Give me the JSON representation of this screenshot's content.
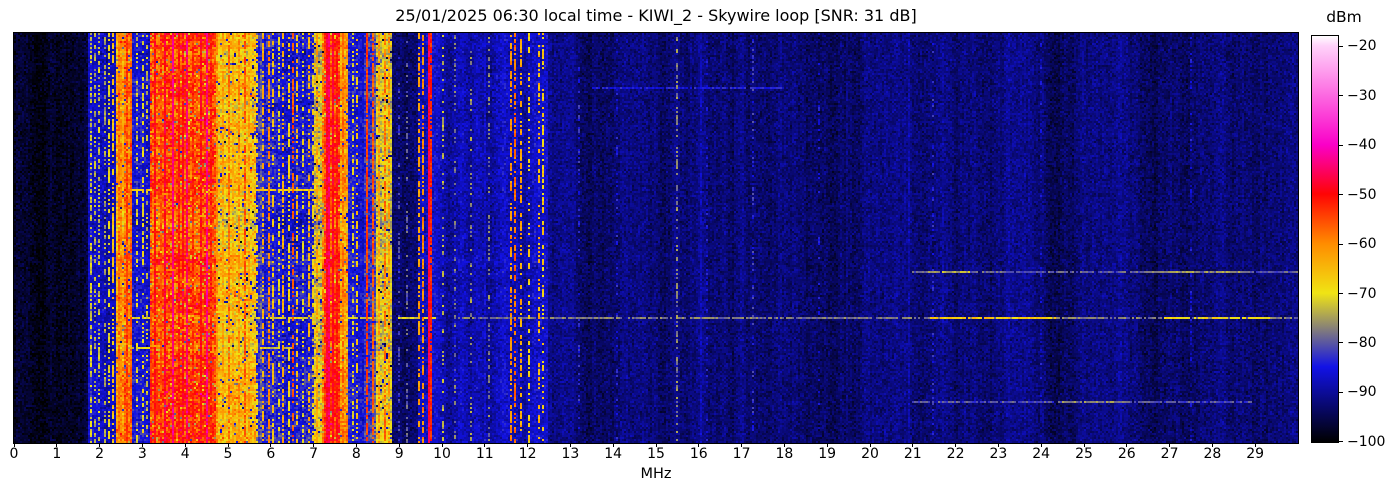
{
  "chart_data": {
    "type": "heatmap",
    "title": "25/01/2025 06:30 local time - KIWI_2 - Skywire loop [SNR: 31 dB]",
    "timestamp_label": "25/01/2025 06:30 local time",
    "station": "KIWI_2",
    "antenna": "Skywire loop",
    "snr_label": "SNR: 31 dB",
    "xlabel": "MHz",
    "x_range": [
      0,
      30
    ],
    "x_ticks": [
      0,
      1,
      2,
      3,
      4,
      5,
      6,
      7,
      8,
      9,
      10,
      11,
      12,
      13,
      14,
      15,
      16,
      17,
      18,
      19,
      20,
      21,
      22,
      23,
      24,
      25,
      26,
      27,
      28,
      29
    ],
    "grid": false,
    "colorbar": {
      "label": "dBm",
      "ticks": [
        -20,
        -30,
        -40,
        -50,
        -60,
        -70,
        -80,
        -90,
        -100
      ],
      "top_value": -18,
      "bottom_value": -100.2,
      "position": "right"
    },
    "colormap_stops": [
      [
        -100.2,
        "#000000"
      ],
      [
        -85,
        "#1212e6"
      ],
      [
        -70,
        "#f0e414"
      ],
      [
        -60,
        "#ff8c00"
      ],
      [
        -50,
        "#ff0404"
      ],
      [
        -40,
        "#fa00c8"
      ],
      [
        -20,
        "#ffd2fa"
      ],
      [
        -18,
        "#ffffff"
      ]
    ],
    "noise_floor_dbm": -92,
    "seed": 7,
    "bands": [
      [
        0,
        1.72,
        -97,
        3.5,
        0
      ],
      [
        1.72,
        2.4,
        -89,
        4.5,
        0.3
      ],
      [
        2.4,
        2.58,
        -63,
        7,
        1
      ],
      [
        2.58,
        2.78,
        -58,
        7,
        1
      ],
      [
        2.78,
        3.2,
        -86,
        5,
        0.5
      ],
      [
        3.2,
        4.7,
        -55,
        8.5,
        1
      ],
      [
        4.7,
        5.65,
        -67,
        8,
        1
      ],
      [
        5.65,
        7.02,
        -85,
        6,
        0.5
      ],
      [
        7.02,
        7.26,
        -72,
        8,
        1
      ],
      [
        7.26,
        7.62,
        -53,
        7,
        1
      ],
      [
        7.62,
        7.8,
        -63,
        7,
        1
      ],
      [
        7.8,
        8.2,
        -85,
        5,
        0.4
      ],
      [
        8.2,
        8.48,
        -82,
        6,
        0.5
      ],
      [
        8.48,
        8.85,
        -72,
        7,
        0.8
      ],
      [
        8.85,
        9.42,
        -93,
        4,
        0
      ],
      [
        9.42,
        9.8,
        -89,
        5,
        0.2
      ],
      [
        9.8,
        12.5,
        -88,
        4.5,
        0.2
      ],
      [
        12.5,
        30,
        -92.5,
        4,
        0
      ]
    ],
    "carriers": [
      [
        1.78,
        0.03,
        -72,
        0.5
      ],
      [
        1.87,
        0.03,
        -74,
        0.4
      ],
      [
        2.0,
        0.03,
        -73,
        0.45
      ],
      [
        2.12,
        0.03,
        -75,
        0.4
      ],
      [
        2.2,
        0.03,
        -70,
        0.5
      ],
      [
        2.3,
        0.04,
        -66,
        0.6
      ],
      [
        2.47,
        0.04,
        -58,
        0.8
      ],
      [
        2.52,
        0.04,
        -60,
        0.75
      ],
      [
        2.66,
        0.05,
        -54,
        0.9
      ],
      [
        2.72,
        0.04,
        -57,
        0.85
      ],
      [
        2.87,
        0.03,
        -72,
        0.4
      ],
      [
        3.0,
        0.03,
        -70,
        0.45
      ],
      [
        3.12,
        0.03,
        -73,
        0.35
      ],
      [
        3.3,
        0.05,
        -50,
        0.95
      ],
      [
        3.42,
        0.04,
        -56,
        0.9
      ],
      [
        3.55,
        0.05,
        -48,
        0.95
      ],
      [
        3.7,
        0.05,
        -44,
        0.97
      ],
      [
        3.85,
        0.04,
        -52,
        0.9
      ],
      [
        3.95,
        0.05,
        -49,
        0.9
      ],
      [
        4.05,
        0.05,
        -45,
        0.95
      ],
      [
        4.2,
        0.04,
        -53,
        0.9
      ],
      [
        4.35,
        0.05,
        -50,
        0.9
      ],
      [
        4.5,
        0.05,
        -44,
        0.95
      ],
      [
        4.62,
        0.04,
        -52,
        0.9
      ],
      [
        4.75,
        0.04,
        -60,
        0.8
      ],
      [
        4.88,
        0.04,
        -62,
        0.75
      ],
      [
        5.0,
        0.04,
        -58,
        0.8
      ],
      [
        5.12,
        0.04,
        -63,
        0.7
      ],
      [
        5.25,
        0.04,
        -60,
        0.75
      ],
      [
        5.38,
        0.05,
        -56,
        0.8
      ],
      [
        5.5,
        0.04,
        -62,
        0.7
      ],
      [
        5.7,
        0.03,
        -68,
        0.5
      ],
      [
        5.82,
        0.03,
        -64,
        0.55
      ],
      [
        5.95,
        0.04,
        -60,
        0.6
      ],
      [
        6.07,
        0.03,
        -66,
        0.5
      ],
      [
        6.18,
        0.03,
        -70,
        0.45
      ],
      [
        6.3,
        0.03,
        -64,
        0.55
      ],
      [
        6.42,
        0.03,
        -68,
        0.5
      ],
      [
        6.5,
        0.04,
        -56,
        0.55
      ],
      [
        6.62,
        0.03,
        -66,
        0.5
      ],
      [
        6.75,
        0.03,
        -70,
        0.45
      ],
      [
        6.88,
        0.03,
        -64,
        0.5
      ],
      [
        6.98,
        0.03,
        -68,
        0.45
      ],
      [
        7.1,
        0.04,
        -62,
        0.7
      ],
      [
        7.2,
        0.04,
        -58,
        0.8
      ],
      [
        7.3,
        0.06,
        -48,
        1
      ],
      [
        7.38,
        0.05,
        -46,
        1
      ],
      [
        7.45,
        0.05,
        -49,
        1
      ],
      [
        7.55,
        0.05,
        -51,
        0.95
      ],
      [
        7.68,
        0.04,
        -58,
        0.8
      ],
      [
        7.9,
        0.03,
        -70,
        0.4
      ],
      [
        8.02,
        0.03,
        -66,
        0.45
      ],
      [
        8.25,
        0.035,
        -54,
        0.9
      ],
      [
        8.41,
        0.035,
        -56,
        0.85
      ],
      [
        8.55,
        0.04,
        -62,
        0.7
      ],
      [
        8.65,
        0.04,
        -58,
        0.7
      ],
      [
        8.75,
        0.04,
        -61,
        0.65
      ],
      [
        9.0,
        0.03,
        -82,
        0.3
      ],
      [
        9.2,
        0.03,
        -80,
        0.3
      ],
      [
        9.45,
        0.035,
        -62,
        0.55
      ],
      [
        9.55,
        0.035,
        -60,
        0.6
      ],
      [
        9.68,
        0.05,
        -47,
        1
      ],
      [
        9.74,
        0.03,
        -52,
        0.9
      ],
      [
        10.0,
        0.03,
        -74,
        0.35
      ],
      [
        10.3,
        0.03,
        -78,
        0.3
      ],
      [
        10.7,
        0.03,
        -76,
        0.3
      ],
      [
        11.1,
        0.03,
        -77,
        0.3
      ],
      [
        11.6,
        0.035,
        -61,
        0.55
      ],
      [
        11.72,
        0.035,
        -58,
        0.6
      ],
      [
        11.85,
        0.035,
        -63,
        0.5
      ],
      [
        12.05,
        0.03,
        -68,
        0.4
      ],
      [
        12.28,
        0.035,
        -64,
        0.45
      ],
      [
        12.38,
        0.03,
        -67,
        0.4
      ],
      [
        13.2,
        0.025,
        -84,
        0.25
      ],
      [
        14.1,
        0.025,
        -85,
        0.2
      ],
      [
        15.5,
        0.03,
        -77,
        0.45
      ],
      [
        16.2,
        0.025,
        -86,
        0.2
      ],
      [
        17.25,
        0.03,
        -83,
        0.25
      ],
      [
        18.8,
        0.025,
        -86,
        0.2
      ],
      [
        21.45,
        0.03,
        -84,
        0.25
      ],
      [
        24.0,
        0.025,
        -86,
        0.2
      ],
      [
        27.5,
        0.025,
        -86,
        0.2
      ]
    ],
    "streaks": [
      [
        0.13,
        13.5,
        18.0,
        -85
      ],
      [
        0.38,
        2.4,
        7.7,
        -67
      ],
      [
        0.583,
        21.0,
        30.0,
        -80
      ],
      [
        0.583,
        21.3,
        22.3,
        -74
      ],
      [
        0.583,
        26.5,
        28.9,
        -76
      ],
      [
        0.695,
        2.4,
        9.8,
        -71
      ],
      [
        0.695,
        10.3,
        30.0,
        -78
      ],
      [
        0.695,
        21.4,
        24.3,
        -67
      ],
      [
        0.695,
        26.8,
        29.3,
        -69
      ],
      [
        0.768,
        2.4,
        6.6,
        -72
      ],
      [
        0.9,
        21.0,
        28.9,
        -81
      ],
      [
        0.9,
        24.5,
        26.0,
        -77
      ]
    ]
  }
}
